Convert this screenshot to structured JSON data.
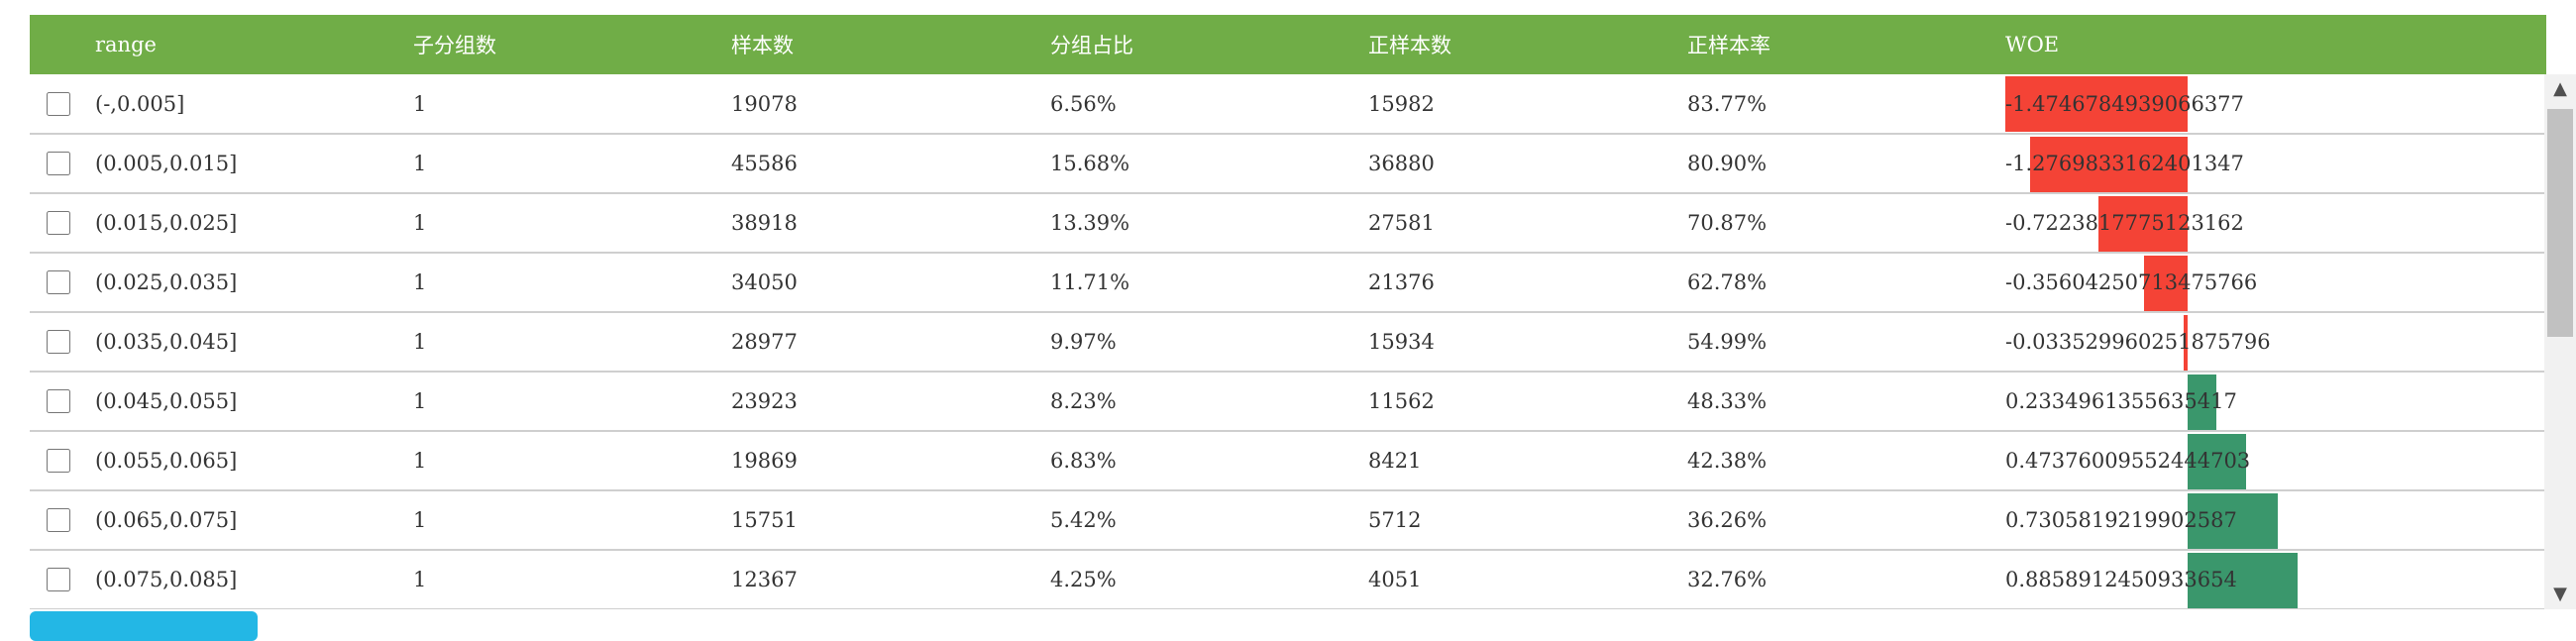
{
  "table": {
    "columns": [
      "range",
      "子分组数",
      "样本数",
      "分组占比",
      "正样本数",
      "正样本率",
      "WOE"
    ],
    "rows": [
      {
        "range": "(-,0.005]",
        "subgroups": "1",
        "samples": "19078",
        "ratio": "6.56%",
        "positives": "15982",
        "pos_rate": "83.77%",
        "woe": "-1.4746784939066377"
      },
      {
        "range": "(0.005,0.015]",
        "subgroups": "1",
        "samples": "45586",
        "ratio": "15.68%",
        "positives": "36880",
        "pos_rate": "80.90%",
        "woe": "-1.2769833162401347"
      },
      {
        "range": "(0.015,0.025]",
        "subgroups": "1",
        "samples": "38918",
        "ratio": "13.39%",
        "positives": "27581",
        "pos_rate": "70.87%",
        "woe": "-0.7223817775123162"
      },
      {
        "range": "(0.025,0.035]",
        "subgroups": "1",
        "samples": "34050",
        "ratio": "11.71%",
        "positives": "21376",
        "pos_rate": "62.78%",
        "woe": "-0.35604250713475766"
      },
      {
        "range": "(0.035,0.045]",
        "subgroups": "1",
        "samples": "28977",
        "ratio": "9.97%",
        "positives": "15934",
        "pos_rate": "54.99%",
        "woe": "-0.033529960251875796"
      },
      {
        "range": "(0.045,0.055]",
        "subgroups": "1",
        "samples": "23923",
        "ratio": "8.23%",
        "positives": "11562",
        "pos_rate": "48.33%",
        "woe": "0.2334961355635417"
      },
      {
        "range": "(0.055,0.065]",
        "subgroups": "1",
        "samples": "19869",
        "ratio": "6.83%",
        "positives": "8421",
        "pos_rate": "42.38%",
        "woe": "0.47376009552444703"
      },
      {
        "range": "(0.065,0.075]",
        "subgroups": "1",
        "samples": "15751",
        "ratio": "5.42%",
        "positives": "5712",
        "pos_rate": "36.26%",
        "woe": "0.7305819219902587"
      },
      {
        "range": "(0.075,0.085]",
        "subgroups": "1",
        "samples": "12367",
        "ratio": "4.25%",
        "positives": "4051",
        "pos_rate": "32.76%",
        "woe": "0.8858912450933654"
      }
    ]
  },
  "woe_bar": {
    "negative_color": "#f44336",
    "positive_color": "#3a976c",
    "max_abs_value": 1.4746784939066377
  },
  "scrollbar": {
    "up_icon": "triangle-up-icon",
    "down_icon": "triangle-down-icon"
  }
}
